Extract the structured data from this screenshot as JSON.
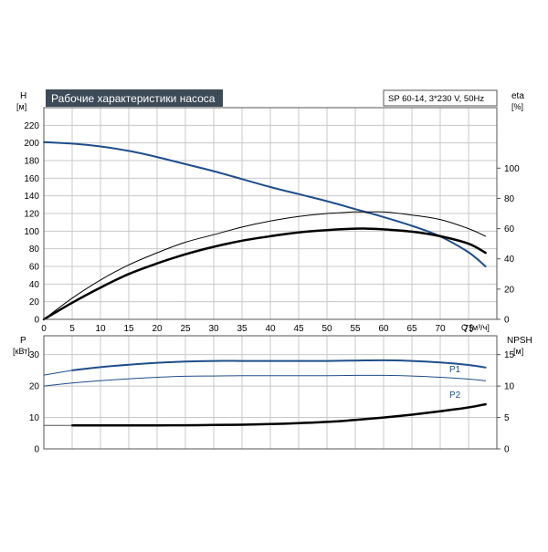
{
  "title_box": "Рабочие характеристики насоса",
  "model_box": "SP 60-14, 3*230 V, 50Hz",
  "chart_data": [
    {
      "type": "line",
      "xlabel": "Q [м³/ч]",
      "xlim": [
        0,
        80
      ],
      "x_ticks": [
        "0",
        "5",
        "10",
        "15",
        "20",
        "25",
        "30",
        "35",
        "40",
        "45",
        "50",
        "55",
        "60",
        "65",
        "70",
        "75"
      ],
      "ylabel": "H",
      "ylabel_unit": "[м]",
      "ylim": [
        0,
        240
      ],
      "y_ticks": [
        "0",
        "20",
        "40",
        "60",
        "80",
        "100",
        "120",
        "140",
        "160",
        "180",
        "200",
        "220"
      ],
      "y2label": "eta",
      "y2label_unit": "[%]",
      "y2lim": [
        0,
        140
      ],
      "y2_ticks": [
        "0",
        "20",
        "40",
        "60",
        "80",
        "100"
      ],
      "grid": true,
      "series": [
        {
          "axis": "left",
          "color": "#1f4e8c",
          "style": "solid",
          "width": 2,
          "x": [
            0,
            5.5,
            10,
            15,
            20,
            25,
            30,
            35,
            40,
            45,
            50,
            55,
            60,
            65,
            70,
            75,
            78
          ],
          "y": [
            201,
            199,
            196,
            191,
            184,
            176,
            168,
            159,
            150,
            142,
            134,
            125,
            116,
            106,
            94,
            76,
            60
          ]
        },
        {
          "axis": "left",
          "color": "#1f4e8c",
          "style": "dashed",
          "width": 1,
          "x": [
            0,
            5.5
          ],
          "y": [
            201,
            199
          ]
        },
        {
          "axis": "right",
          "color": "#000000",
          "style": "solid",
          "width": 1,
          "x": [
            0,
            5,
            10,
            15,
            20,
            25,
            30,
            35,
            40,
            45,
            50,
            55,
            57,
            60,
            65,
            70,
            75,
            78
          ],
          "y": [
            0,
            14,
            26,
            36,
            44,
            51,
            56,
            61,
            65,
            68,
            70,
            71,
            71,
            71,
            69,
            66,
            60,
            55
          ]
        },
        {
          "axis": "right",
          "color": "#000000",
          "style": "solid",
          "width": 2.5,
          "x": [
            0,
            5,
            10,
            15,
            20,
            25,
            30,
            35,
            40,
            45,
            50,
            55,
            57,
            60,
            65,
            70,
            75,
            78
          ],
          "y": [
            0,
            11,
            21,
            30,
            37,
            43,
            48,
            52,
            55,
            57.5,
            59,
            60,
            60,
            59.5,
            58,
            55,
            50,
            44
          ]
        }
      ]
    },
    {
      "type": "line",
      "xlim": [
        0,
        80
      ],
      "ylabel": "P",
      "ylabel_unit": "[кВт]",
      "ylim": [
        0,
        36
      ],
      "y_ticks": [
        "0",
        "10",
        "20",
        "30"
      ],
      "y2label": "NPSH",
      "y2label_unit": "[м]",
      "y2lim": [
        0,
        18
      ],
      "y2_ticks": [
        "0",
        "5",
        "10",
        "15"
      ],
      "grid": true,
      "series": [
        {
          "name": "P1",
          "axis": "left",
          "color": "#1f4e8c",
          "style": "solid",
          "width": 2,
          "x": [
            5,
            10,
            15,
            20,
            25,
            30,
            35,
            40,
            45,
            50,
            55,
            60,
            65,
            70,
            75,
            78
          ],
          "y": [
            25.0,
            26.0,
            26.8,
            27.4,
            27.8,
            28.0,
            28.0,
            28.0,
            28.0,
            28.0,
            28.1,
            28.2,
            28.0,
            27.5,
            26.7,
            25.9
          ]
        },
        {
          "axis": "left",
          "color": "#1f4e8c",
          "style": "solid",
          "width": 1,
          "x": [
            0,
            5
          ],
          "y": [
            23.5,
            25.0
          ]
        },
        {
          "name": "P2",
          "axis": "left",
          "color": "#1f4e8c",
          "style": "solid",
          "width": 1,
          "x": [
            5,
            10,
            15,
            20,
            25,
            30,
            35,
            40,
            45,
            50,
            55,
            60,
            65,
            70,
            75,
            78
          ],
          "y": [
            21.0,
            21.7,
            22.3,
            22.8,
            23.1,
            23.2,
            23.3,
            23.3,
            23.3,
            23.3,
            23.4,
            23.4,
            23.2,
            22.8,
            22.2,
            21.7
          ]
        },
        {
          "axis": "left",
          "color": "#1f4e8c",
          "style": "solid",
          "width": 1,
          "x": [
            0,
            5
          ],
          "y": [
            20.0,
            21.0
          ]
        },
        {
          "axis": "right",
          "color": "#000000",
          "style": "solid",
          "width": 2.5,
          "x": [
            5,
            10,
            15,
            20,
            25,
            30,
            35,
            40,
            45,
            50,
            55,
            60,
            65,
            70,
            75,
            78
          ],
          "y": [
            3.75,
            3.75,
            3.75,
            3.75,
            3.76,
            3.8,
            3.85,
            3.95,
            4.1,
            4.3,
            4.6,
            5.0,
            5.45,
            6.0,
            6.6,
            7.1
          ]
        },
        {
          "axis": "right",
          "color": "#555555",
          "style": "solid",
          "width": 1,
          "x": [
            0,
            5
          ],
          "y": [
            3.75,
            3.75
          ]
        }
      ],
      "labels": [
        {
          "text": "P1",
          "x": 76,
          "y": 28.2,
          "color": "#1f4e8c"
        },
        {
          "text": "P2",
          "x": 76,
          "y": 19.4,
          "color": "#1f4e8c"
        }
      ]
    }
  ]
}
